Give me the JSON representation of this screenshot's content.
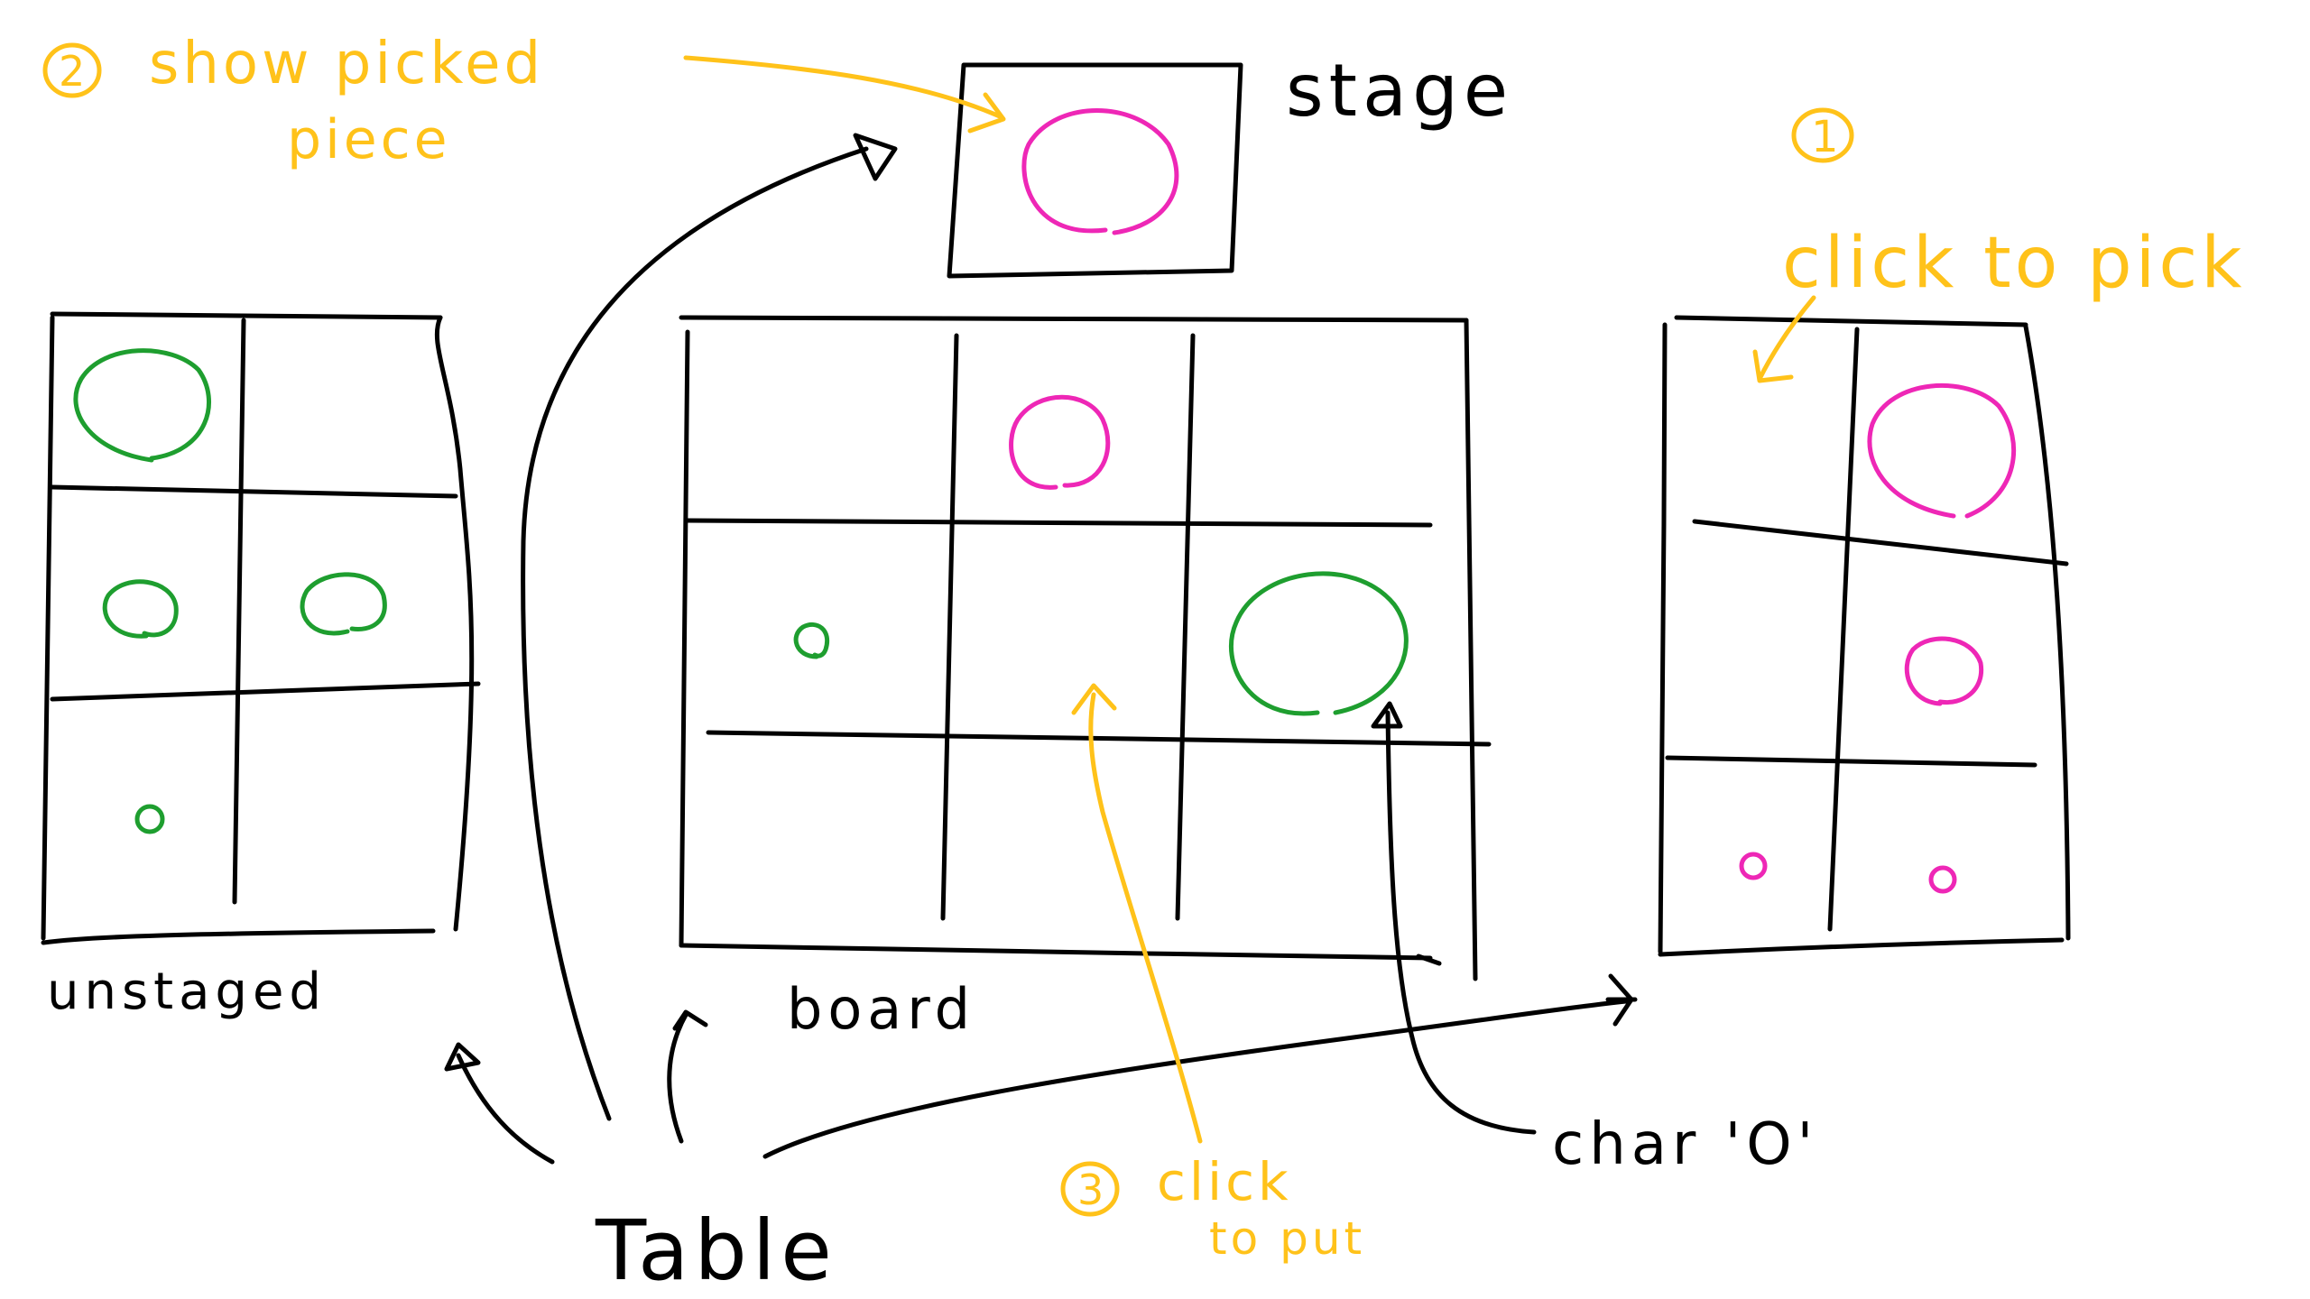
{
  "labels": {
    "stage": "stage",
    "unstaged": "unstaged",
    "board": "board",
    "table": "Table",
    "char_o": "char 'O'"
  },
  "annotations": {
    "step1_number": "1",
    "step1_text": "click to pick",
    "step2_number": "2",
    "step2_line1": "show picked",
    "step2_line2": "piece",
    "step3_number": "3",
    "step3_line1": "click",
    "step3_line2": "to put"
  },
  "pieces": {
    "stage": [
      "pink-large"
    ],
    "unstaged_green": [
      "large",
      "medium",
      "medium",
      "small"
    ],
    "board": [
      "pink-medium",
      "green-small",
      "green-large"
    ],
    "right_pink": [
      "large",
      "medium",
      "small",
      "small"
    ]
  },
  "colors": {
    "ink": "#000000",
    "annotation": "#ffc21a",
    "player_green": "#1e9e2f",
    "player_pink": "#ee27b6"
  }
}
